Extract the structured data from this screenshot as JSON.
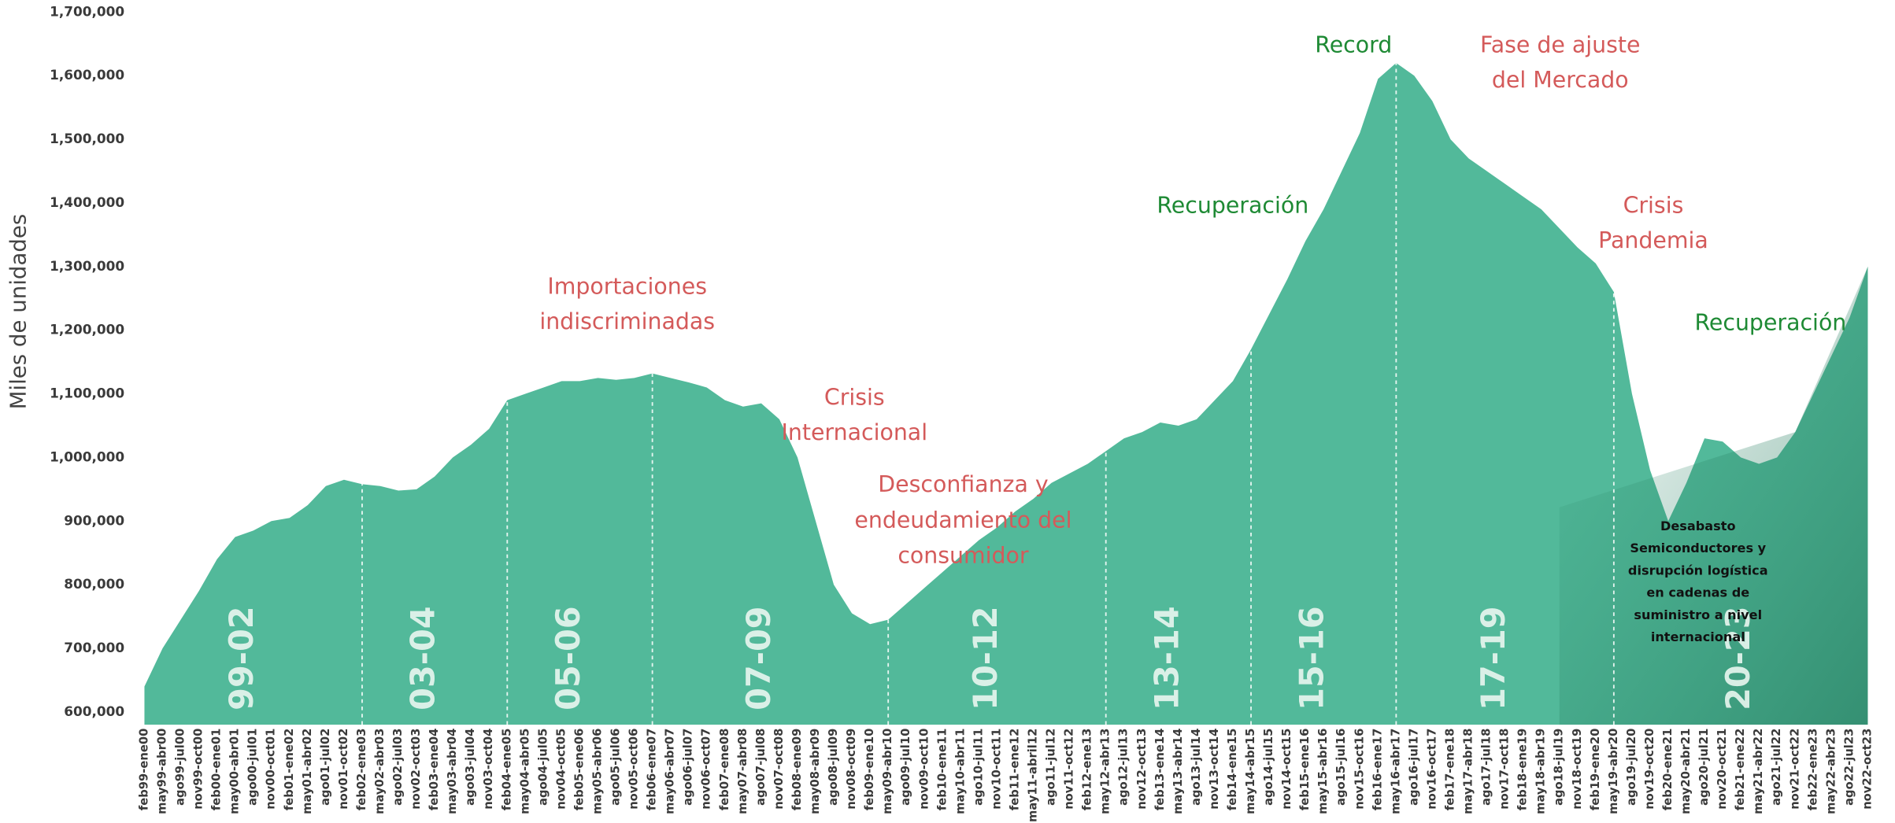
{
  "chart_data": {
    "type": "area",
    "y_label": "Miles de unidades",
    "color": "#52b99a",
    "categories": [
      "feb99-ene00",
      "may99-abr00",
      "ago99-jul00",
      "nov99-oct00",
      "feb00-ene01",
      "may00-abr01",
      "ago00-jul01",
      "nov00-oct01",
      "feb01-ene02",
      "may01-abr02",
      "ago01-jul02",
      "nov01-oct02",
      "feb02-ene03",
      "may02-abr03",
      "ago02-jul03",
      "nov02-oct03",
      "feb03-ene04",
      "may03-abr04",
      "ago03-jul04",
      "nov03-oct04",
      "feb04-ene05",
      "may04-abr05",
      "ago04-jul05",
      "nov04-oct05",
      "feb05-ene06",
      "may05-abr06",
      "ago05-jul06",
      "nov05-oct06",
      "feb06-ene07",
      "may06-abr07",
      "ago06-jul07",
      "nov06-oct07",
      "feb07-ene08",
      "may07-abr08",
      "ago07-jul08",
      "nov07-oct08",
      "feb08-ene09",
      "may08-abr09",
      "ago08-jul09",
      "nov08-oct09",
      "feb09-ene10",
      "may09-abr10",
      "ago09-jul10",
      "nov09-oct10",
      "feb10-ene11",
      "may10-abr11",
      "ago10-jul11",
      "nov10-oct11",
      "feb11-ene12",
      "may11-abril12",
      "ago11-jul12",
      "nov11-oct12",
      "feb12-ene13",
      "may12-abr13",
      "ago12-jul13",
      "nov12-oct13",
      "feb13-ene14",
      "may13-abr14",
      "ago13-jul14",
      "nov13-oct14",
      "feb14-ene15",
      "may14-abr15",
      "ago14-jul15",
      "nov14-oct15",
      "feb15-ene16",
      "may15-abr16",
      "ago15-jul16",
      "nov15-oct16",
      "feb16-ene17",
      "may16-abr17",
      "ago16-jul17",
      "nov16-oct17",
      "feb17-ene18",
      "may17-abr18",
      "ago17-jul18",
      "nov17-oct18",
      "feb18-ene19",
      "may18-abr19",
      "ago18-jul19",
      "nov18-oct19",
      "feb19-ene20",
      "may19-abr20",
      "ago19-jul20",
      "nov19-oct20",
      "feb20-ene21",
      "may20-abr21",
      "ago20-jul21",
      "nov20-oct21",
      "feb21-ene22",
      "may21-abr22",
      "ago21-jul22",
      "nov21-oct22",
      "feb22-ene23",
      "may22-abr23",
      "ago22-jul23",
      "nov22-oct23"
    ],
    "values": [
      640000,
      700000,
      745000,
      790000,
      840000,
      875000,
      885000,
      900000,
      905000,
      925000,
      955000,
      965000,
      958000,
      955000,
      948000,
      950000,
      970000,
      1000000,
      1020000,
      1045000,
      1090000,
      1100000,
      1110000,
      1120000,
      1120000,
      1125000,
      1122000,
      1125000,
      1132000,
      1125000,
      1118000,
      1110000,
      1090000,
      1080000,
      1085000,
      1060000,
      1000000,
      900000,
      800000,
      755000,
      738000,
      745000,
      770000,
      795000,
      820000,
      845000,
      870000,
      890000,
      915000,
      935000,
      960000,
      975000,
      990000,
      1010000,
      1030000,
      1040000,
      1055000,
      1050000,
      1060000,
      1090000,
      1120000,
      1170000,
      1225000,
      1280000,
      1340000,
      1390000,
      1450000,
      1510000,
      1595000,
      1620000,
      1600000,
      1560000,
      1500000,
      1470000,
      1450000,
      1430000,
      1410000,
      1390000,
      1360000,
      1330000,
      1305000,
      1260000,
      1100000,
      980000,
      900000,
      960000,
      1030000,
      1025000,
      1000000,
      990000,
      1000000,
      1040000,
      1100000,
      1160000,
      1220000,
      1300000
    ],
    "ylim": [
      580000,
      1700000
    ],
    "yticks": [
      {
        "value": 600000,
        "label": "600,000"
      },
      {
        "value": 700000,
        "label": "700,000"
      },
      {
        "value": 800000,
        "label": "800,000"
      },
      {
        "value": 900000,
        "label": "900,000"
      },
      {
        "value": 1000000,
        "label": "1,000,000"
      },
      {
        "value": 1100000,
        "label": "1,100,000"
      },
      {
        "value": 1200000,
        "label": "1,200,000"
      },
      {
        "value": 1300000,
        "label": "1,300,000"
      },
      {
        "value": 1400000,
        "label": "1,400,000"
      },
      {
        "value": 1500000,
        "label": "1,500,000"
      },
      {
        "value": 1600000,
        "label": "1,600,000"
      },
      {
        "value": 1700000,
        "label": "1,700,000"
      }
    ],
    "grid": false,
    "periods": [
      {
        "label": "99-02",
        "from": "feb99-ene00"
      },
      {
        "label": "03-04",
        "from": "feb02-ene03"
      },
      {
        "label": "05-06",
        "from": "feb04-ene05"
      },
      {
        "label": "07-09",
        "from": "feb06-ene07"
      },
      {
        "label": "10-12",
        "from": "may09-abr10"
      },
      {
        "label": "13-14",
        "from": "may12-abr13"
      },
      {
        "label": "15-16",
        "from": "may14-abr15"
      },
      {
        "label": "17-19",
        "from": "may16-abr17"
      },
      {
        "label": "20-23",
        "from": "may19-abr20"
      }
    ],
    "annotations": [
      {
        "lines": [
          "Importaciones",
          "indiscriminadas"
        ],
        "color": "#d45a5a"
      },
      {
        "lines": [
          "Crisis",
          "Internacional"
        ],
        "color": "#d45a5a"
      },
      {
        "lines": [
          "Desconfianza y",
          "endeudamiento del",
          "consumidor"
        ],
        "color": "#d45a5a"
      },
      {
        "lines": [
          "Recuperación"
        ],
        "color": "#1e8a34"
      },
      {
        "lines": [
          "Record"
        ],
        "color": "#1e8a34"
      },
      {
        "lines": [
          "Fase de ajuste",
          "del Mercado"
        ],
        "color": "#d45a5a"
      },
      {
        "lines": [
          "Crisis",
          "Pandemia"
        ],
        "color": "#d45a5a"
      },
      {
        "lines": [
          "Recuperación"
        ],
        "color": "#1e8a34"
      },
      {
        "lines": [
          "Desabasto",
          "Semiconductores y",
          "disrupción logística",
          "en cadenas de",
          "suministro a nivel",
          "internacional"
        ],
        "color": "#111111"
      }
    ]
  }
}
